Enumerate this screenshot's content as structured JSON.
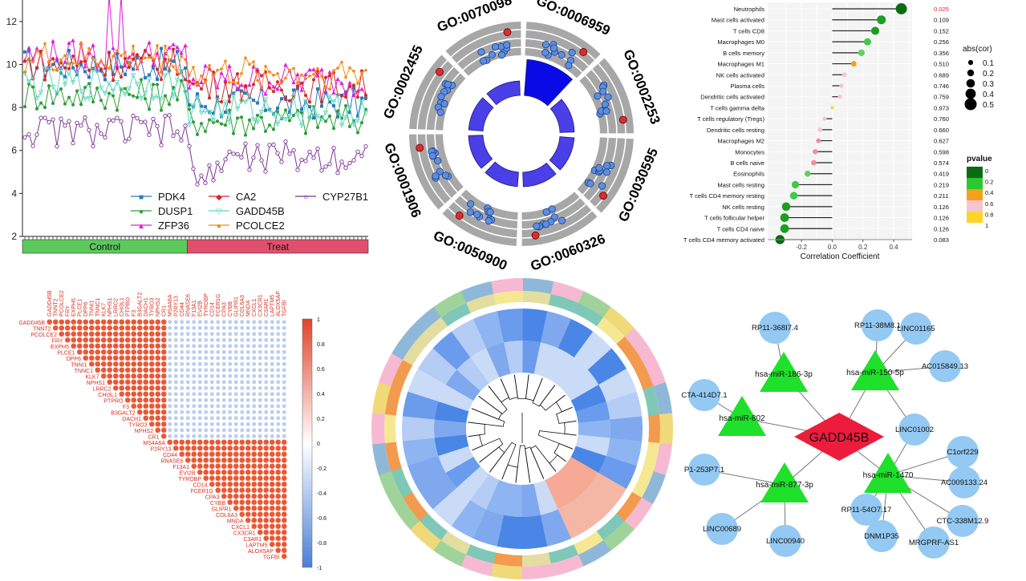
{
  "colors": {
    "lines": [
      "#2b7bba",
      "#2e9b3a",
      "#e31ad9",
      "#d62728",
      "#5fd6bf",
      "#f28a1a",
      "#7b3494"
    ],
    "control": "#5cc95c",
    "treat": "#e0506a",
    "corr_pos": "#e65a38",
    "corr_neg": "#6f98d8",
    "network_node": "#93c9f2",
    "mirna": "#1fe02a",
    "hub": "#ee1c3c",
    "go_bar": "#1f1ee0",
    "go_point": "#5d8ee0"
  },
  "chart_data": [
    {
      "type": "line",
      "ylim": [
        2,
        13
      ],
      "yticks": [
        "2",
        "4",
        "6",
        "8",
        "10",
        "12"
      ],
      "groups": [
        {
          "label": "Control",
          "n": 41
        },
        {
          "label": "Treat",
          "n": 45
        }
      ],
      "series": [
        {
          "name": "PDK4",
          "marker": "square",
          "base": [
            10.0,
            8.2
          ]
        },
        {
          "name": "DUSP1",
          "marker": "circle",
          "base": [
            8.6,
            7.4
          ]
        },
        {
          "name": "ZFP36",
          "marker": "triangle",
          "base": [
            10.4,
            9.3
          ]
        },
        {
          "name": "CA2",
          "marker": "diamond",
          "base": [
            10.0,
            9.0
          ]
        },
        {
          "name": "GADD45B",
          "marker": "tri-down",
          "base": [
            9.1,
            7.9
          ]
        },
        {
          "name": "PCOLCE2",
          "marker": "dot",
          "base": [
            10.3,
            9.6
          ]
        },
        {
          "name": "CYP27B1",
          "marker": "hollow",
          "base": [
            6.9,
            5.7
          ]
        }
      ]
    },
    {
      "type": "circular",
      "terms": [
        "GO:0006959",
        "GO:0002253",
        "GO:0030595",
        "GO:0060326",
        "GO:0050900",
        "GO:0001906",
        "GO:0002455",
        "GO:0070098"
      ],
      "bar_values": [
        1.0,
        0.55,
        0.45,
        0.5,
        0.45,
        0.55,
        0.5,
        0.5
      ]
    },
    {
      "type": "scatter",
      "xlabel": "Correlation Coefficient",
      "xlim": [
        -0.42,
        0.52
      ],
      "xticks": [
        "-0.2",
        "0.0",
        "0.2",
        "0.4"
      ],
      "categories": [
        "Neutrophils",
        "Mast cells activated",
        "T cells CD8",
        "Macrophages M0",
        "B cells memory",
        "Macrophages M1",
        "NK cells activated",
        "Plasma cells",
        "Dendritic cells activated",
        "T cells gamma delta",
        "T cells regulatory (Tregs)",
        "Dendritic cells resting",
        "Macrophages M2",
        "Monocytes",
        "B cells naive",
        "Eosinophils",
        "Mast cells resting",
        "T cells CD4 memory resting",
        "NK cells resting",
        "T cells follicular helper",
        "T cells CD4 naive",
        "T cells CD4 memory activated"
      ],
      "values": [
        0.45,
        0.32,
        0.28,
        0.23,
        0.19,
        0.14,
        0.08,
        0.06,
        0.05,
        0.0,
        -0.05,
        -0.08,
        -0.09,
        -0.11,
        -0.12,
        -0.16,
        -0.24,
        -0.25,
        -0.3,
        -0.31,
        -0.31,
        -0.34
      ],
      "pvalues": [
        "0.025",
        "0.109",
        "0.152",
        "0.256",
        "0.356",
        "0.510",
        "0.689",
        "0.746",
        "0.759",
        "0.973",
        "0.760",
        "0.660",
        "0.627",
        "0.598",
        "0.574",
        "0.419",
        "0.219",
        "0.211",
        "0.126",
        "0.126",
        "0.126",
        "0.083"
      ],
      "size_legend": {
        "title": "abs(cor)",
        "labels": [
          "0.1",
          "0.2",
          "0.3",
          "0.4",
          "0.5"
        ]
      },
      "color_legend": {
        "title": "pvalue",
        "labels": [
          "0",
          "0.2",
          "0.4",
          "0.6",
          "0.8",
          "1"
        ],
        "colors": [
          "#0b6b13",
          "#2ec82e",
          "#f4a11d",
          "#f7c4d0",
          "#fbd42a"
        ]
      }
    },
    {
      "type": "heatmap",
      "genes": [
        "GADD45B",
        "TNNT2",
        "PCOLCE2",
        "FRY",
        "EXPH5",
        "PLCE1",
        "DPP6",
        "TNNI1",
        "TNNC1",
        "KLK7",
        "NPHS1",
        "LRRC2",
        "CHI3L1",
        "PTPRO",
        "F3",
        "B3GALT2",
        "DACH1",
        "TYRO3",
        "NPHS2",
        "CR1",
        "MS4A6A",
        "P2RY13",
        "CD44",
        "RNASE6",
        "F13A1",
        "EVI2B",
        "TYROBP",
        "CD14",
        "FCER1G",
        "CPA3",
        "CYBB",
        "GLIPR1",
        "COL6A3",
        "MNDA",
        "CXCL1",
        "CX3CR1",
        "C3AR1",
        "LAPTM5",
        "ALOX5AP",
        "TGFBI"
      ],
      "group_sizes": [
        20,
        20
      ],
      "scale_labels": [
        "1",
        "0.8",
        "0.6",
        "0.4",
        "0.2",
        "0",
        "-0.2",
        "-0.4",
        "-0.6",
        "-0.8",
        "-1"
      ]
    },
    {
      "type": "heatmap",
      "segments": 30
    },
    {
      "type": "network",
      "hub": "GADD45B",
      "mirnas": [
        "hsa-miR-186-3p",
        "hsa-miR-150-5p",
        "hsa-miR-802",
        "hsa-miR-877-3p",
        "hsa-miR-1470"
      ],
      "nodes": [
        "RP11-368I7.4",
        "RP11-38M8.1",
        "LINC01165",
        "AC015849.13",
        "CTA-414D7.1",
        "LINC01002",
        "C1orf229",
        "P1-253P7.1",
        "AC009133.24",
        "RP11-54O7.17",
        "CTC-338M12.9",
        "LINC00689",
        "LINC00940",
        "DNM1P35",
        "MRGPRF-AS1"
      ]
    }
  ]
}
